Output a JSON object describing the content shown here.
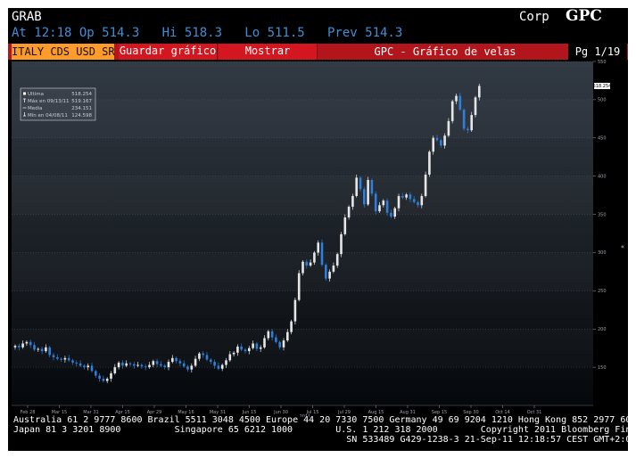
{
  "header": {
    "title": "GRAB",
    "corp": "Corp",
    "brand": "GPC",
    "quote_line": "At 12:18 Op 514.3   Hi 518.3   Lo 511.5   Prev 514.3"
  },
  "toolbar": {
    "ticker": "ITALY CDS USD SR",
    "save_label": "Guardar gráfico",
    "show_label": "Mostrar",
    "chart_title": "GPC - Gráfico de velas",
    "page": "Pg 1/19"
  },
  "legend": [
    {
      "label": "Ultima",
      "value": "518.254"
    },
    {
      "label": "Máx en 09/13/11",
      "value": "519.167"
    },
    {
      "label": "Media",
      "value": "234.151"
    },
    {
      "label": "Mín en 04/08/11",
      "value": "124.598"
    }
  ],
  "last_value_label": "518.254",
  "footer": {
    "line1": "Australia 61 2 9777 8600 Brazil 5511 3048 4500 Europe 44 20 7330 7500 Germany 49 69 9204 1210 Hong Kong 852 2977 6000",
    "line2": "Japan 81 3 3201 8900          Singapore 65 6212 1000        U.S. 1 212 318 2000        Copyright 2011 Bloomberg Finance L.P.",
    "line3": "                                                              SN 533489 G429-1238-3 21-Sep-11 12:18:57 CEST GMT+2:00"
  },
  "colors": {
    "up": "#e6e6e6",
    "down": "#2e7fd9",
    "accent": "#d3161f",
    "ticker_bg": "#ff9b2a"
  },
  "chart_data": {
    "type": "candlestick",
    "title": "GPC - Gráfico de velas",
    "ylim": [
      100,
      550
    ],
    "y_ticks": [
      150,
      200,
      250,
      300,
      350,
      400,
      450,
      500,
      550
    ],
    "x_ticks": [
      "Feb 28",
      "Mar 15",
      "Mar 31",
      "Apr 15",
      "Apr 29",
      "May 16",
      "May 31",
      "Jun 15",
      "Jun 30",
      "Jul 15",
      "Jul 29",
      "Aug 15",
      "Aug 31",
      "Sep 15",
      "Sep 30",
      "Oct 14",
      "Oct 31"
    ],
    "x_sublabel": "2011",
    "legend_position": "top-left",
    "close": [
      178,
      176,
      181,
      183,
      179,
      173,
      174,
      171,
      176,
      166,
      163,
      161,
      160,
      162,
      159,
      156,
      155,
      152,
      150,
      152,
      145,
      139,
      135,
      132,
      135,
      142,
      150,
      156,
      152,
      155,
      154,
      152,
      153,
      151,
      150,
      153,
      158,
      154,
      152,
      150,
      157,
      162,
      158,
      155,
      151,
      147,
      152,
      161,
      168,
      166,
      160,
      157,
      152,
      148,
      153,
      159,
      167,
      169,
      177,
      173,
      171,
      175,
      181,
      174,
      176,
      188,
      197,
      189,
      183,
      176,
      185,
      196,
      210,
      238,
      273,
      288,
      283,
      287,
      300,
      313,
      284,
      266,
      275,
      283,
      298,
      324,
      346,
      360,
      374,
      398,
      383,
      363,
      395,
      377,
      354,
      362,
      368,
      352,
      347,
      358,
      374,
      372,
      376,
      370,
      366,
      362,
      374,
      402,
      432,
      450,
      447,
      440,
      453,
      472,
      498,
      505,
      487,
      462,
      460,
      480,
      503,
      518
    ],
    "grid": true
  }
}
